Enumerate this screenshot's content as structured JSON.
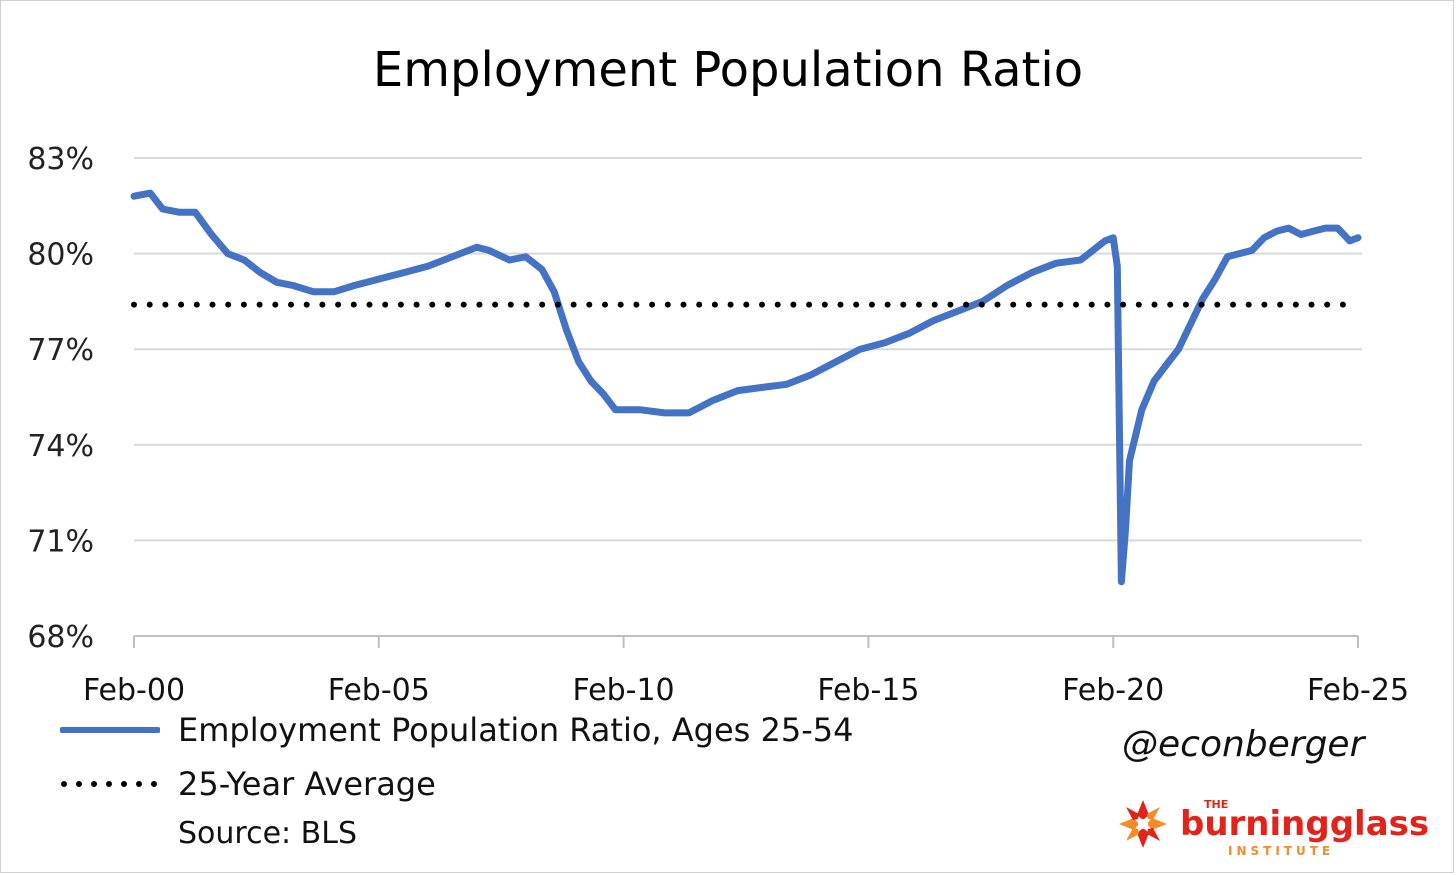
{
  "chart_data": {
    "type": "line",
    "title": "Employment Population Ratio",
    "xlabel": "",
    "ylabel": "",
    "ylim": [
      68,
      83
    ],
    "yticks": [
      "68%",
      "71%",
      "74%",
      "77%",
      "80%",
      "83%"
    ],
    "xticks": [
      "Feb-00",
      "Feb-05",
      "Feb-10",
      "Feb-15",
      "Feb-20",
      "Feb-25"
    ],
    "grid": true,
    "legend_position": "bottom-left",
    "series": [
      {
        "name": "Employment Population Ratio, Ages 25-54",
        "color": "#4472C4",
        "style": "solid",
        "points": [
          [
            "2000-02",
            81.8
          ],
          [
            "2000-06",
            81.9
          ],
          [
            "2000-09",
            81.4
          ],
          [
            "2001-01",
            81.3
          ],
          [
            "2001-05",
            81.3
          ],
          [
            "2001-09",
            80.6
          ],
          [
            "2002-01",
            80.0
          ],
          [
            "2002-05",
            79.8
          ],
          [
            "2002-09",
            79.4
          ],
          [
            "2003-01",
            79.1
          ],
          [
            "2003-05",
            79.0
          ],
          [
            "2003-10",
            78.8
          ],
          [
            "2004-03",
            78.8
          ],
          [
            "2004-08",
            79.0
          ],
          [
            "2005-02",
            79.2
          ],
          [
            "2005-08",
            79.4
          ],
          [
            "2006-02",
            79.6
          ],
          [
            "2006-08",
            79.9
          ],
          [
            "2007-02",
            80.2
          ],
          [
            "2007-05",
            80.1
          ],
          [
            "2007-10",
            79.8
          ],
          [
            "2008-02",
            79.9
          ],
          [
            "2008-06",
            79.5
          ],
          [
            "2008-09",
            78.8
          ],
          [
            "2008-12",
            77.6
          ],
          [
            "2009-03",
            76.6
          ],
          [
            "2009-06",
            76.0
          ],
          [
            "2009-09",
            75.6
          ],
          [
            "2009-12",
            75.1
          ],
          [
            "2010-06",
            75.1
          ],
          [
            "2010-12",
            75.0
          ],
          [
            "2011-06",
            75.0
          ],
          [
            "2011-12",
            75.4
          ],
          [
            "2012-06",
            75.7
          ],
          [
            "2012-12",
            75.8
          ],
          [
            "2013-06",
            75.9
          ],
          [
            "2013-12",
            76.2
          ],
          [
            "2014-06",
            76.6
          ],
          [
            "2014-12",
            77.0
          ],
          [
            "2015-06",
            77.2
          ],
          [
            "2015-12",
            77.5
          ],
          [
            "2016-06",
            77.9
          ],
          [
            "2016-12",
            78.2
          ],
          [
            "2017-06",
            78.5
          ],
          [
            "2017-12",
            79.0
          ],
          [
            "2018-06",
            79.4
          ],
          [
            "2018-12",
            79.7
          ],
          [
            "2019-06",
            79.8
          ],
          [
            "2019-12",
            80.4
          ],
          [
            "2020-02",
            80.5
          ],
          [
            "2020-03",
            79.6
          ],
          [
            "2020-04",
            69.7
          ],
          [
            "2020-05",
            71.3
          ],
          [
            "2020-06",
            73.5
          ],
          [
            "2020-09",
            75.1
          ],
          [
            "2020-12",
            76.0
          ],
          [
            "2021-03",
            76.5
          ],
          [
            "2021-06",
            77.0
          ],
          [
            "2021-09",
            77.8
          ],
          [
            "2021-12",
            78.6
          ],
          [
            "2022-03",
            79.2
          ],
          [
            "2022-06",
            79.9
          ],
          [
            "2022-12",
            80.1
          ],
          [
            "2023-03",
            80.5
          ],
          [
            "2023-06",
            80.7
          ],
          [
            "2023-09",
            80.8
          ],
          [
            "2023-12",
            80.6
          ],
          [
            "2024-03",
            80.7
          ],
          [
            "2024-06",
            80.8
          ],
          [
            "2024-09",
            80.8
          ],
          [
            "2024-12",
            80.4
          ],
          [
            "2025-02",
            80.5
          ]
        ]
      },
      {
        "name": "25-Year Average",
        "color": "#000000",
        "style": "dotted",
        "points": [
          [
            "2000-02",
            78.4
          ],
          [
            "2025-02",
            78.4
          ]
        ]
      }
    ],
    "annotations": {
      "source": "Source: BLS",
      "handle": "@econberger"
    }
  },
  "logo": {
    "text_small": "THE",
    "text_main_1": "burning",
    "text_main_2": "glass",
    "text_sub": "INSTITUTE",
    "color_primary": "#E2231A",
    "color_secondary": "#F28C28"
  }
}
